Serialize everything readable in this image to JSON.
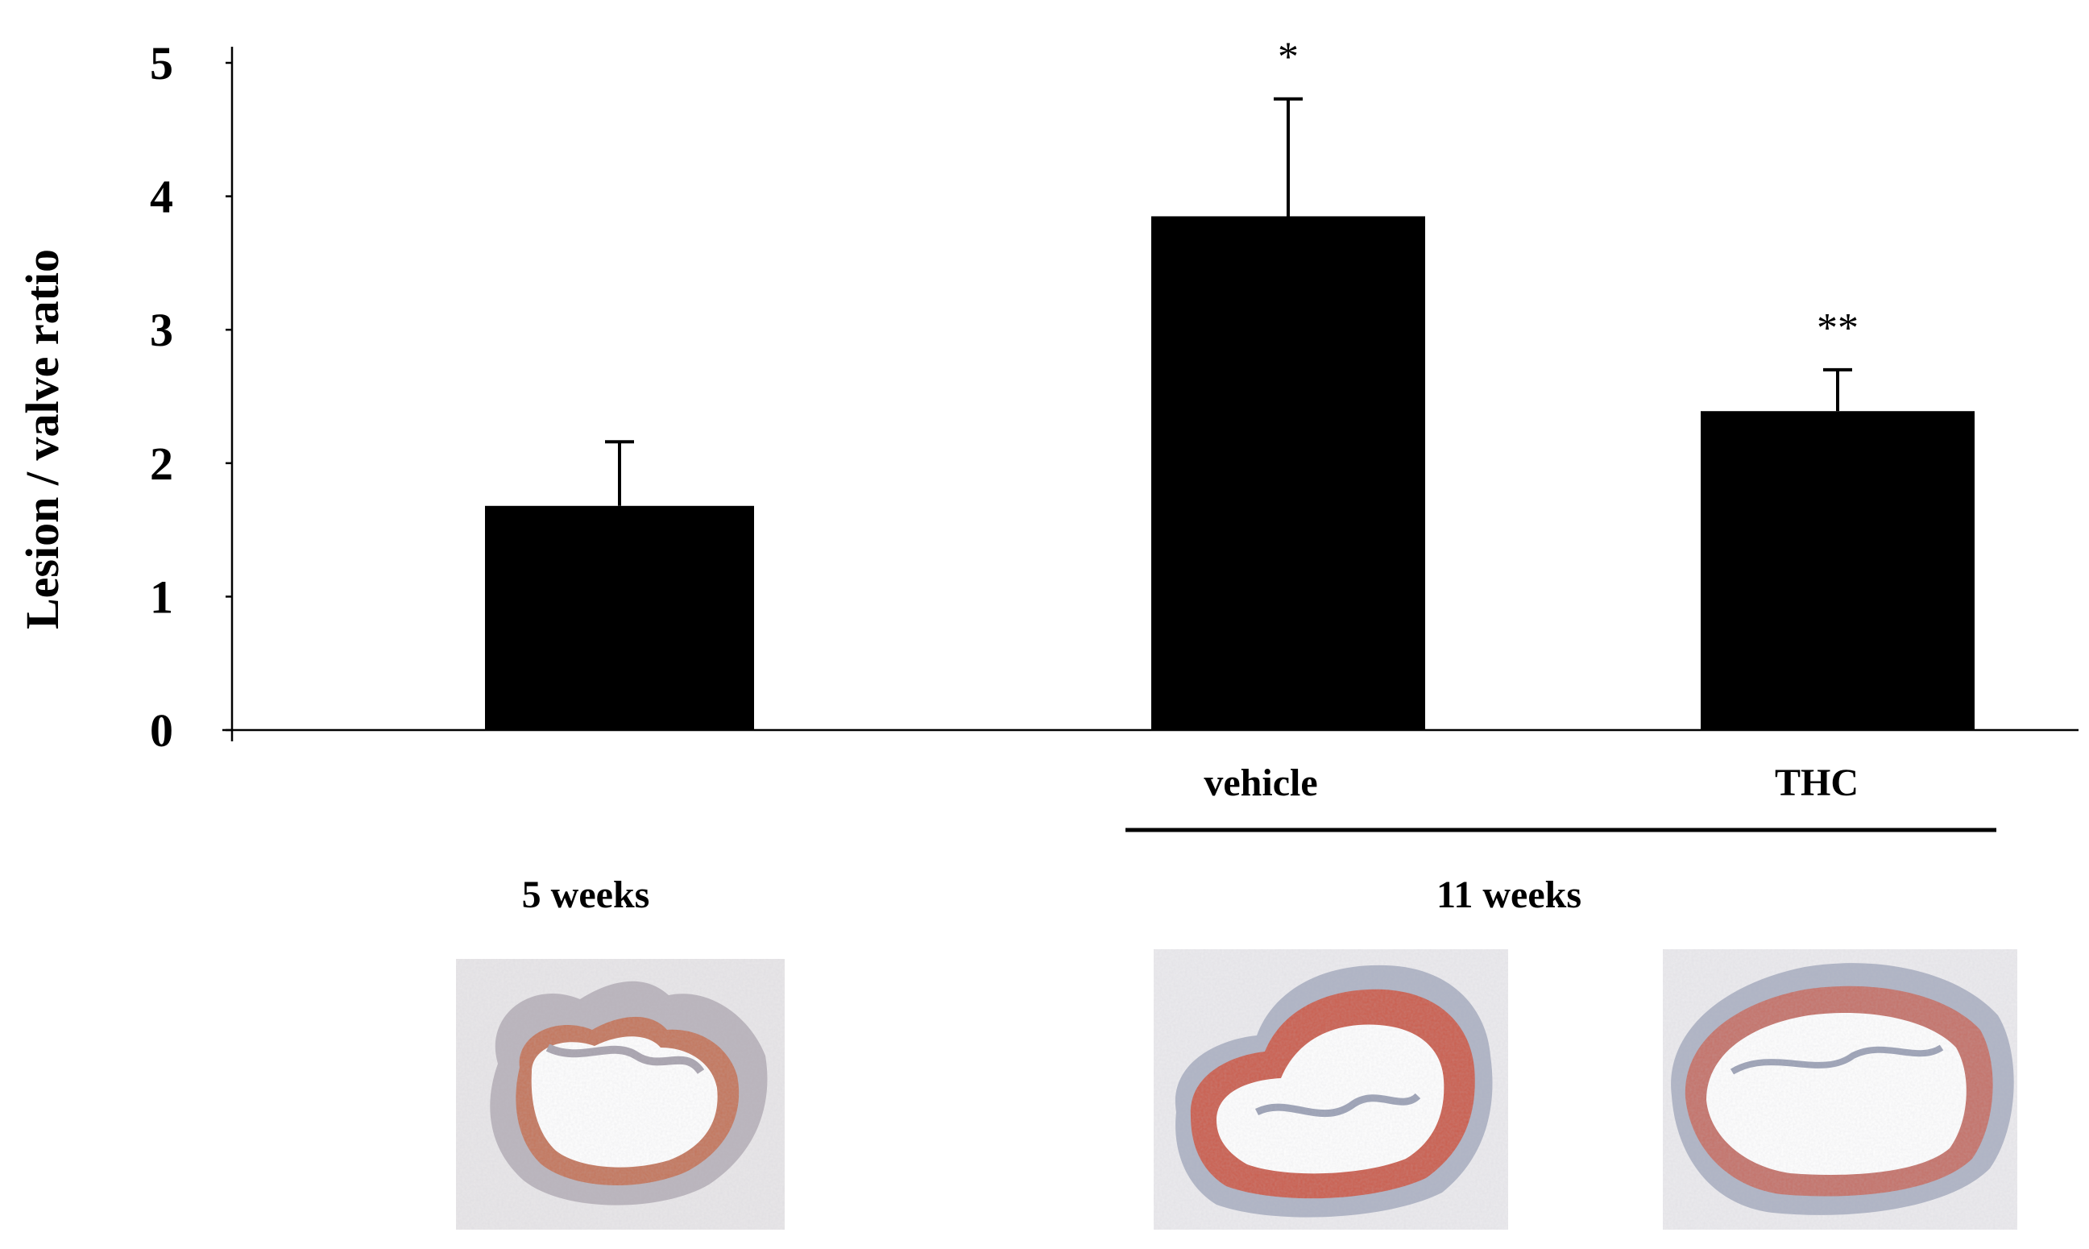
{
  "chart_data": {
    "type": "bar",
    "ylabel": "Lesion / valve ratio",
    "xlabel": "",
    "ylim": [
      0,
      5
    ],
    "yticks": [
      "0",
      "1",
      "2",
      "3",
      "4",
      "5"
    ],
    "grid": false,
    "bars": [
      {
        "label": "",
        "group": "5 weeks",
        "value": 1.68,
        "error": 0.48,
        "significance": ""
      },
      {
        "label": "vehicle",
        "group": "11 weeks",
        "value": 3.85,
        "error": 0.88,
        "significance": "*"
      },
      {
        "label": "THC",
        "group": "11 weeks",
        "value": 2.39,
        "error": 0.31,
        "significance": "**"
      }
    ],
    "groups": [
      "5 weeks",
      "11 weeks"
    ],
    "bar_color": "#000000"
  },
  "images": [
    {
      "name": "5-weeks-valve-section",
      "group": "5 weeks",
      "stain_color": "#c8532f"
    },
    {
      "name": "vehicle-valve-section",
      "group": "11 weeks",
      "stain_color": "#d2452c"
    },
    {
      "name": "thc-valve-section",
      "group": "11 weeks",
      "stain_color": "#d2452c"
    }
  ]
}
